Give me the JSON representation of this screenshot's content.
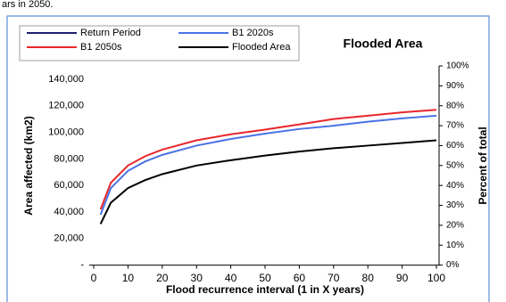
{
  "caption_fragment": "ars in 2050.",
  "chart_data": {
    "type": "line",
    "title": "Flooded Area",
    "xlabel": "Flood recurrence interval (1 in X years)",
    "ylabel": "Area affected (km2)",
    "y2label": "Percent of total",
    "x": [
      2,
      5,
      10,
      15,
      20,
      30,
      40,
      50,
      60,
      70,
      80,
      90,
      100
    ],
    "series": [
      {
        "name": "Return Period",
        "color": "#1f1f6e",
        "values": [
          null,
          null,
          null,
          null,
          null,
          null,
          null,
          null,
          null,
          null,
          null,
          null,
          null
        ]
      },
      {
        "name": "B1 2020s",
        "color": "#4a73e6",
        "values": [
          38000,
          58000,
          71000,
          78000,
          83000,
          90000,
          95000,
          99000,
          102500,
          105000,
          108000,
          110500,
          112500
        ]
      },
      {
        "name": "B1 2050s",
        "color": "#e8262a",
        "values": [
          42000,
          62000,
          75000,
          82000,
          87000,
          94000,
          98500,
          102000,
          106000,
          110000,
          112500,
          115000,
          117000
        ]
      },
      {
        "name": "Flooded Area",
        "color": "#000000",
        "values": [
          31000,
          47000,
          58000,
          64000,
          68500,
          75000,
          79000,
          82500,
          85500,
          88000,
          90000,
          92000,
          94000
        ]
      }
    ],
    "xlim": [
      0,
      100
    ],
    "xticks": [
      0,
      10,
      20,
      30,
      40,
      50,
      60,
      70,
      80,
      90,
      100
    ],
    "ylim": [
      0,
      150000
    ],
    "yticks": [
      {
        "value": 0,
        "label": "-"
      },
      {
        "value": 20000,
        "label": "20,000"
      },
      {
        "value": 40000,
        "label": "40,000"
      },
      {
        "value": 60000,
        "label": "60,000"
      },
      {
        "value": 80000,
        "label": "80,000"
      },
      {
        "value": 100000,
        "label": "100,000"
      },
      {
        "value": 120000,
        "label": "120,000"
      },
      {
        "value": 140000,
        "label": "140,000"
      }
    ],
    "y2lim": [
      0,
      100
    ],
    "y2ticks": [
      {
        "value": 0,
        "label": "0%"
      },
      {
        "value": 10,
        "label": "10%"
      },
      {
        "value": 20,
        "label": "20%"
      },
      {
        "value": 30,
        "label": "30%"
      },
      {
        "value": 40,
        "label": "40%"
      },
      {
        "value": 50,
        "label": "50%"
      },
      {
        "value": 60,
        "label": "60%"
      },
      {
        "value": 70,
        "label": "70%"
      },
      {
        "value": 80,
        "label": "80%"
      },
      {
        "value": 90,
        "label": "90%"
      },
      {
        "value": 100,
        "label": "100%"
      }
    ],
    "grid": false,
    "legend": "top-left"
  }
}
